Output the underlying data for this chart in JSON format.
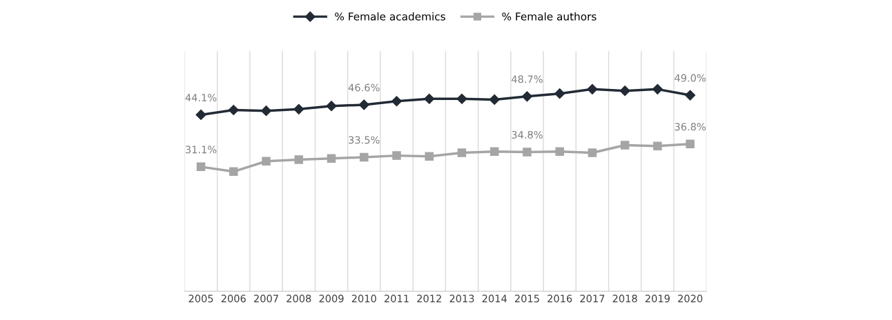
{
  "chart_data": {
    "type": "line",
    "relative": false,
    "categories": [
      "2005",
      "2006",
      "2007",
      "2008",
      "2009",
      "2010",
      "2011",
      "2012",
      "2013",
      "2014",
      "2015",
      "2016",
      "2017",
      "2018",
      "2019",
      "2020"
    ],
    "series": [
      {
        "name": "% Female academics",
        "color": "#222a35",
        "marker": "diamond",
        "values": [
          44.1,
          45.3,
          45.1,
          45.5,
          46.3,
          46.6,
          47.5,
          48.1,
          48.1,
          47.9,
          48.7,
          49.4,
          50.5,
          50.1,
          50.5,
          49.0
        ],
        "value_labels": [
          "44.1%",
          null,
          null,
          null,
          null,
          "46.6%",
          null,
          null,
          null,
          null,
          "48.7%",
          null,
          null,
          null,
          null,
          "49.0%"
        ]
      },
      {
        "name": "% Female authors",
        "color": "#a5a5a5",
        "marker": "square",
        "values": [
          31.1,
          29.9,
          32.5,
          32.9,
          33.2,
          33.5,
          33.9,
          33.7,
          34.6,
          34.9,
          34.8,
          34.9,
          34.6,
          36.5,
          36.3,
          36.8
        ],
        "value_labels": [
          "31.1%",
          null,
          null,
          null,
          null,
          "33.5%",
          null,
          null,
          null,
          null,
          "34.8%",
          null,
          null,
          null,
          null,
          "36.8%"
        ]
      }
    ],
    "ylim": [
      0,
      60
    ],
    "tick_labels": "x",
    "grid": "x",
    "legend": "top",
    "line_style": "solid"
  }
}
